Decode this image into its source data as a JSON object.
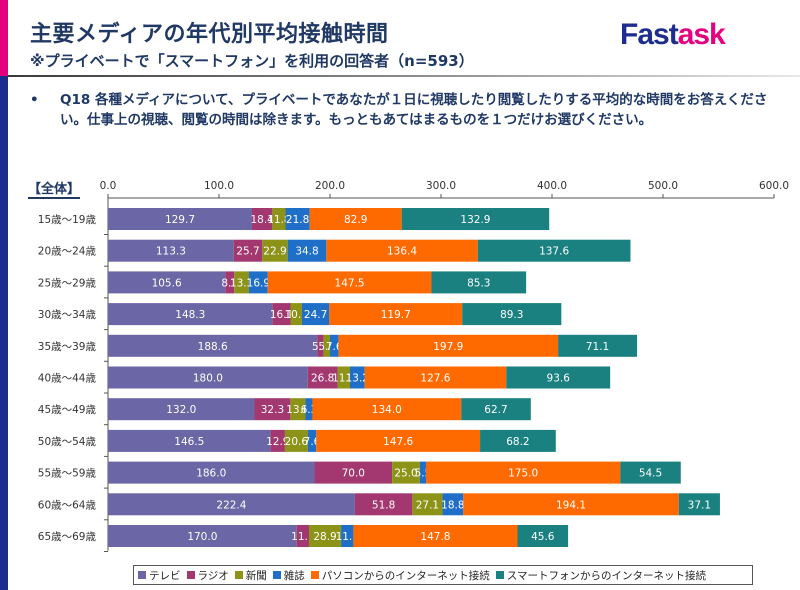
{
  "header": {
    "title": "主要メディアの年代別平均接触時間",
    "subtitle": "※プライベートで「スマートフォン」を利用の回答者（n=593）",
    "logo_part1": "Fast",
    "logo_part2": "ask"
  },
  "question": {
    "bullet": "•",
    "text": "Q18 各種メディアについて、プライベートであなたが１日に視聴したり閲覧したりする平均的な時間をお答えください。仕事上の視聴、閲覧の時間は除きます。もっともあてはまるものを１つだけお選びください。"
  },
  "scope_label": "【全体】",
  "colors": {
    "accent_magenta": "#e4007f",
    "accent_navy": "#1d2d8c"
  },
  "chart_data": {
    "type": "bar",
    "orientation": "horizontal-stacked",
    "title": "主要メディアの年代別平均接触時間",
    "xlabel": "",
    "ylabel": "",
    "xlim": [
      0,
      600
    ],
    "x_ticks": [
      "0.0",
      "100.0",
      "200.0",
      "300.0",
      "400.0",
      "500.0",
      "600.0"
    ],
    "x_tick_values": [
      0,
      100,
      200,
      300,
      400,
      500,
      600
    ],
    "grid": false,
    "legend_position": "bottom",
    "categories": [
      "15歳～19歳",
      "20歳～24歳",
      "25歳～29歳",
      "30歳～34歳",
      "35歳～39歳",
      "40歳～44歳",
      "45歳～49歳",
      "50歳～54歳",
      "55歳～59歳",
      "60歳～64歳",
      "65歳～69歳"
    ],
    "series": [
      {
        "name": "テレビ",
        "color": "#6b66a6",
        "values": [
          129.7,
          113.3,
          105.6,
          148.3,
          188.6,
          180.0,
          132.0,
          146.5,
          186.0,
          222.4,
          170.0
        ]
      },
      {
        "name": "ラジオ",
        "color": "#a2386f",
        "values": [
          18.4,
          25.7,
          8.1,
          16.1,
          5.5,
          26.8,
          32.3,
          12.9,
          70.0,
          51.8,
          11.1
        ]
      },
      {
        "name": "新聞",
        "color": "#8c9317",
        "values": [
          11.8,
          22.9,
          13.3,
          10.3,
          5.9,
          11.2,
          13.6,
          20.6,
          25.0,
          27.1,
          28.9
        ]
      },
      {
        "name": "雑誌",
        "color": "#1f6fc9",
        "values": [
          21.8,
          34.8,
          16.9,
          24.7,
          7.6,
          13.2,
          6.3,
          7.6,
          5.5,
          18.8,
          11.1
        ]
      },
      {
        "name": "パソコンからのインターネット接続",
        "color": "#ff6a00",
        "values": [
          82.9,
          136.4,
          147.5,
          119.7,
          197.9,
          127.6,
          134.0,
          147.6,
          175.0,
          194.1,
          147.8
        ]
      },
      {
        "name": "スマートフォンからのインターネット接続",
        "color": "#1a8080",
        "values": [
          132.9,
          137.6,
          85.3,
          89.3,
          71.1,
          93.6,
          62.7,
          68.2,
          54.5,
          37.1,
          45.6
        ]
      }
    ]
  }
}
